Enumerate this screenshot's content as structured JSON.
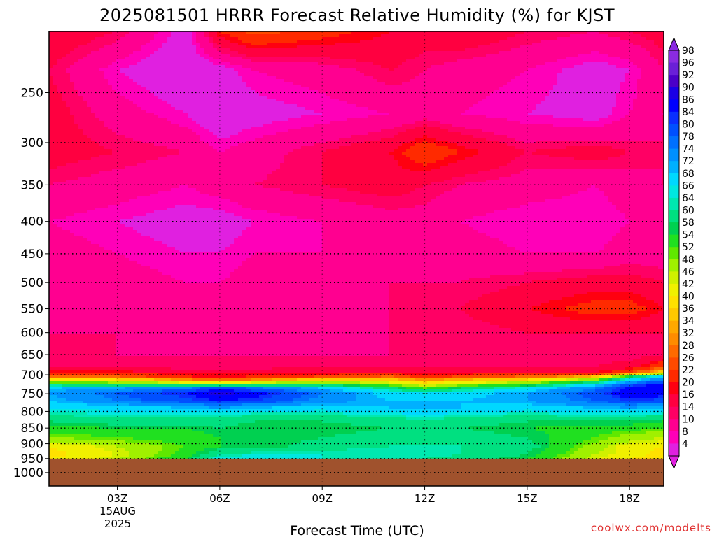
{
  "chart_data": {
    "type": "heatmap",
    "title": "2025081501 HRRR Forecast Relative Humidity (%) for KJST",
    "xlabel": "Forecast Time (UTC)",
    "ylabel": "",
    "x_ticks": [
      "03Z",
      "06Z",
      "09Z",
      "12Z",
      "15Z",
      "18Z"
    ],
    "x_date_label": [
      "15AUG",
      "2025"
    ],
    "y_ticks": [
      "250",
      "300",
      "350",
      "400",
      "450",
      "500",
      "550",
      "600",
      "650",
      "700",
      "750",
      "800",
      "850",
      "900",
      "950",
      "1000"
    ],
    "y_axis": "pressure (hPa), log scale, inverted",
    "x_range_hours": [
      1,
      19
    ],
    "y_range_hpa": [
      200,
      1050
    ],
    "ground_level_hpa": 950,
    "colorbar": {
      "labels": [
        "98",
        "96",
        "92",
        "90",
        "86",
        "84",
        "80",
        "78",
        "74",
        "72",
        "68",
        "66",
        "64",
        "60",
        "58",
        "54",
        "52",
        "48",
        "46",
        "42",
        "40",
        "36",
        "34",
        "32",
        "28",
        "26",
        "22",
        "20",
        "16",
        "14",
        "10",
        "8",
        "4"
      ],
      "colors": [
        "#8a2be2",
        "#6a1fd8",
        "#4b00c8",
        "#1a00e6",
        "#0000ff",
        "#0a2fff",
        "#0050ff",
        "#0070ff",
        "#0090ff",
        "#00b0ff",
        "#00d8ff",
        "#00e8e0",
        "#00e8b0",
        "#00e080",
        "#00d050",
        "#20e020",
        "#60e800",
        "#a0f000",
        "#d0f000",
        "#f0f000",
        "#ffe000",
        "#ffc800",
        "#ffa800",
        "#ff8c00",
        "#ff6a00",
        "#ff4a00",
        "#ff2a00",
        "#ff0010",
        "#ff0040",
        "#ff0064",
        "#ff0090",
        "#ff00b8",
        "#e020e0"
      ]
    },
    "hours": [
      1,
      3,
      5,
      6,
      7,
      9,
      11,
      12,
      13,
      15,
      17,
      18,
      19
    ],
    "levels_hpa": [
      200,
      230,
      270,
      310,
      350,
      400,
      450,
      500,
      550,
      600,
      650,
      680,
      695,
      705,
      715,
      725,
      735,
      750,
      770,
      790,
      810,
      830,
      850,
      880,
      910,
      935,
      950
    ],
    "rh_percent": [
      [
        20,
        16,
        6,
        22,
        28,
        24,
        20,
        18,
        20,
        16,
        14,
        16,
        18
      ],
      [
        16,
        8,
        4,
        6,
        10,
        12,
        16,
        14,
        12,
        10,
        6,
        8,
        14
      ],
      [
        18,
        12,
        8,
        4,
        6,
        8,
        10,
        12,
        10,
        8,
        6,
        10,
        14
      ],
      [
        18,
        16,
        14,
        10,
        12,
        16,
        20,
        26,
        22,
        16,
        18,
        16,
        14
      ],
      [
        14,
        12,
        10,
        12,
        14,
        16,
        18,
        16,
        14,
        12,
        10,
        12,
        14
      ],
      [
        10,
        8,
        6,
        6,
        8,
        10,
        12,
        12,
        10,
        8,
        8,
        10,
        12
      ],
      [
        12,
        10,
        8,
        8,
        10,
        10,
        12,
        12,
        12,
        10,
        10,
        12,
        12
      ],
      [
        14,
        12,
        10,
        10,
        12,
        12,
        14,
        14,
        14,
        16,
        18,
        18,
        16
      ],
      [
        14,
        12,
        12,
        12,
        12,
        12,
        14,
        14,
        16,
        20,
        24,
        24,
        20
      ],
      [
        14,
        14,
        12,
        12,
        12,
        12,
        14,
        14,
        14,
        16,
        16,
        16,
        16
      ],
      [
        14,
        14,
        14,
        14,
        14,
        14,
        14,
        14,
        14,
        14,
        14,
        14,
        16
      ],
      [
        16,
        16,
        14,
        14,
        14,
        16,
        16,
        16,
        16,
        16,
        16,
        18,
        26
      ],
      [
        22,
        22,
        20,
        20,
        20,
        20,
        20,
        20,
        20,
        20,
        20,
        28,
        42
      ],
      [
        30,
        28,
        22,
        20,
        22,
        26,
        28,
        24,
        26,
        28,
        36,
        58,
        70
      ],
      [
        46,
        44,
        36,
        32,
        36,
        42,
        40,
        36,
        38,
        44,
        56,
        72,
        80
      ],
      [
        62,
        60,
        56,
        54,
        58,
        60,
        52,
        44,
        50,
        56,
        70,
        82,
        88
      ],
      [
        72,
        74,
        78,
        84,
        80,
        72,
        62,
        54,
        60,
        68,
        78,
        88,
        90
      ],
      [
        74,
        80,
        86,
        92,
        88,
        78,
        70,
        68,
        70,
        74,
        82,
        90,
        88
      ],
      [
        72,
        78,
        82,
        86,
        84,
        76,
        72,
        72,
        72,
        74,
        80,
        84,
        82
      ],
      [
        68,
        70,
        72,
        74,
        72,
        70,
        72,
        74,
        72,
        70,
        72,
        74,
        72
      ],
      [
        64,
        66,
        66,
        66,
        64,
        64,
        66,
        68,
        66,
        64,
        66,
        66,
        64
      ],
      [
        60,
        62,
        62,
        62,
        60,
        60,
        62,
        62,
        62,
        60,
        60,
        60,
        58
      ],
      [
        56,
        58,
        58,
        60,
        58,
        58,
        60,
        60,
        60,
        58,
        56,
        56,
        54
      ],
      [
        52,
        54,
        56,
        58,
        58,
        60,
        62,
        62,
        62,
        60,
        54,
        50,
        48
      ],
      [
        42,
        48,
        54,
        58,
        58,
        62,
        64,
        64,
        64,
        62,
        50,
        44,
        42
      ],
      [
        40,
        46,
        56,
        64,
        66,
        66,
        66,
        66,
        64,
        60,
        48,
        44,
        40
      ],
      [
        42,
        48,
        58,
        68,
        68,
        66,
        64,
        64,
        62,
        58,
        46,
        42,
        40
      ]
    ]
  },
  "footer": {
    "credit": "coolwx.com/modelts"
  }
}
